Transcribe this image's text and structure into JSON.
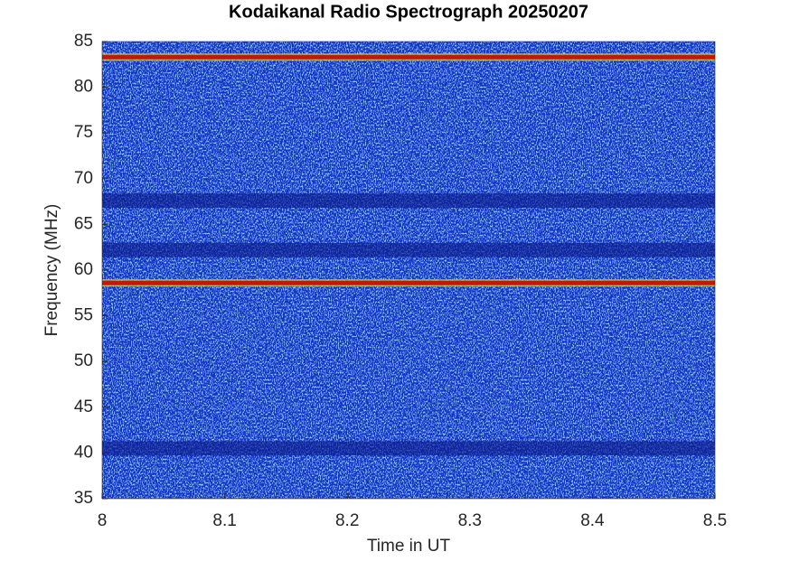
{
  "chart_data": {
    "type": "spectrogram",
    "title": "Kodaikanal Radio Spectrograph  20250207",
    "xlabel": "Time in UT",
    "ylabel": "Frequency (MHz)",
    "xlim": [
      8,
      8.5
    ],
    "xticks": [
      8,
      8.1,
      8.2,
      8.3,
      8.4,
      8.5
    ],
    "ylim": [
      35,
      85
    ],
    "yticks": [
      35,
      40,
      45,
      50,
      55,
      60,
      65,
      70,
      75,
      80,
      85
    ],
    "background_color": "#1232c4",
    "bands": [
      {
        "frequency": 83.3,
        "color": "#c8140a",
        "kind": "emission"
      },
      {
        "frequency": 58.6,
        "color": "#c8140a",
        "kind": "emission"
      },
      {
        "frequency": 67.6,
        "color": "#0a1c8c",
        "kind": "absorption"
      },
      {
        "frequency": 62.2,
        "color": "#0a1c8c",
        "kind": "absorption"
      },
      {
        "frequency": 40.5,
        "color": "#0a1c8c",
        "kind": "absorption"
      }
    ]
  }
}
